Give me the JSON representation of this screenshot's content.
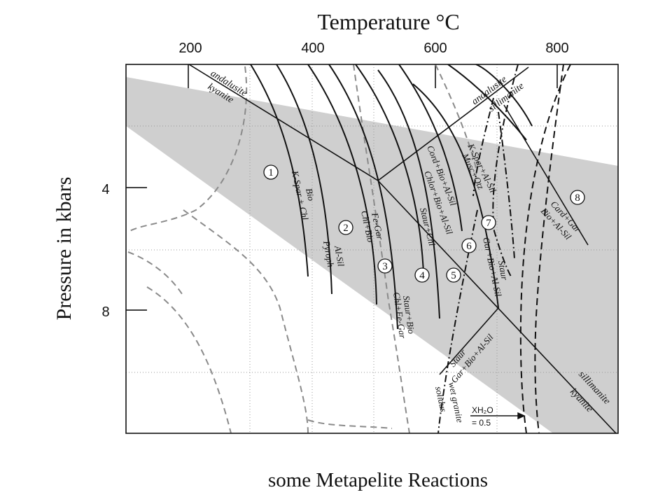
{
  "title": "Temperature °C",
  "y_title": "Pressure in kbars",
  "caption": "some Metapelite Reactions",
  "x_ticks": [
    "200",
    "400",
    "600",
    "800"
  ],
  "y_ticks": [
    "4",
    "8"
  ],
  "phase_labels": {
    "and_top": "andalusite",
    "ky_top": "kyanite",
    "and_mid": "andalusite",
    "sil_mid": "sillimanite",
    "sil_bottom": "sillimanite",
    "ky_bottom": "kyanite"
  },
  "reaction_labels": {
    "r1a": "Bio",
    "r1b": "K-Spar + Chl",
    "r2a": "Al-Sil",
    "r2b": "Pyroph",
    "r3a": "Fe-Gar",
    "r3b": "Chl+Bio",
    "r4a": "Staur+Chl",
    "r4b": "Chlor+Bio+Al-Sil",
    "r5a": "Cord+Bio+Al-Sil",
    "r6a": "K-Spar+Al-Sil",
    "r6b": "Musc+Qtz",
    "r7a": "Staur+Bio",
    "r7b": "Chl+Fe-Gar",
    "r8a": "Staur",
    "r8b": "Gar+Bio+Al-Sil",
    "r9a": "Staur",
    "r9b": "Gar+Bio+Al-Sil",
    "r10a": "Card+Gar",
    "r10b": "Bio+Al-Sil",
    "solidus_a": "wet granite",
    "solidus_b": "solidus"
  },
  "numbers": [
    "1",
    "2",
    "3",
    "4",
    "5",
    "6",
    "7",
    "8"
  ],
  "xh2o": {
    "label": "XH₂O",
    "value": "= 0.5"
  }
}
